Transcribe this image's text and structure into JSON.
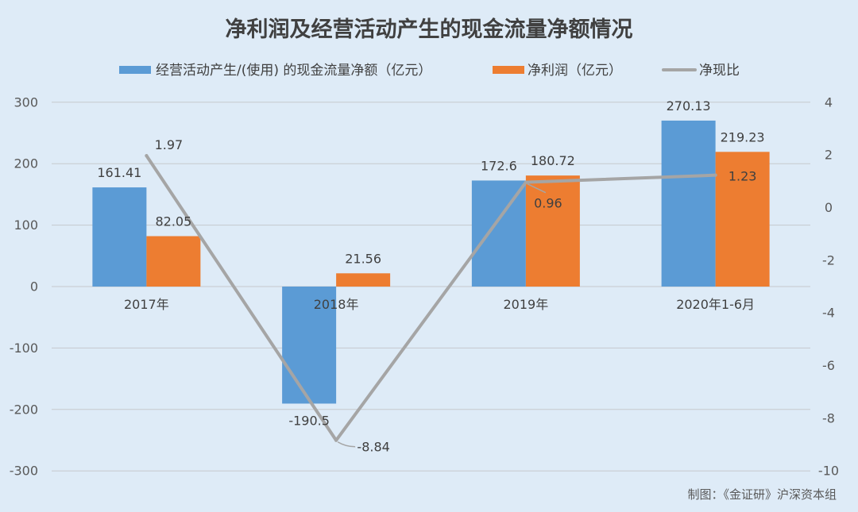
{
  "chart_data": {
    "type": "bar",
    "title": "净利润及经营活动产生的现金流量净额情况",
    "categories": [
      "2017年",
      "2018年",
      "2019年",
      "2020年1-6月"
    ],
    "series": [
      {
        "name": "经营活动产生/(使用) 的现金流量净额（亿元）",
        "type": "bar",
        "axis": "left",
        "color": "#5b9bd5",
        "values": [
          161.41,
          -190.5,
          172.6,
          270.13
        ]
      },
      {
        "name": "净利润（亿元）",
        "type": "bar",
        "axis": "left",
        "color": "#ed7d31",
        "values": [
          82.05,
          21.56,
          180.72,
          219.23
        ]
      },
      {
        "name": "净现比",
        "type": "line",
        "axis": "right",
        "color": "#a5a5a5",
        "values": [
          1.97,
          -8.84,
          0.96,
          1.23
        ]
      }
    ],
    "y_left": {
      "min": -300,
      "max": 300,
      "ticks": [
        300,
        200,
        100,
        0,
        -100,
        -200,
        -300
      ]
    },
    "y_right": {
      "min": -10,
      "max": 4,
      "ticks": [
        4,
        2,
        0,
        -2,
        -4,
        -6,
        -8,
        -10
      ]
    },
    "grid": true,
    "legend_position": "top",
    "data_labels": true
  },
  "footer": {
    "credit": "制图：《金证研》沪深资本组"
  },
  "colors": {
    "background": "#deebf7",
    "text": "#404040"
  }
}
